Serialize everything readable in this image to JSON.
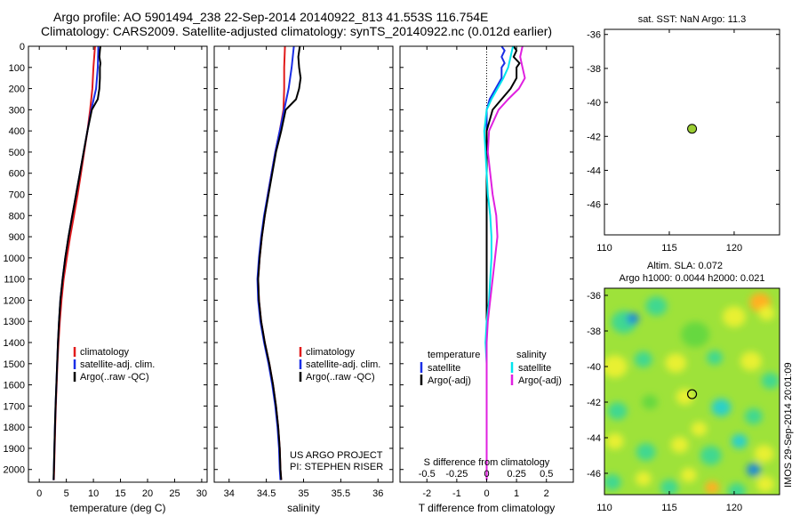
{
  "header": {
    "line1": "Argo profile: AO 5901494_238 22-Sep-2014 20140922_813 41.553S 116.754E",
    "line2": "Climatology: CARS2009. Satellite-adjusted climatology: synTS_20140922.nc (0.012d earlier)"
  },
  "colors": {
    "climatology": "#e11b1b",
    "satellite": "#1a2ee6",
    "argo": "#000000",
    "cyan": "#00e5ee",
    "magenta": "#e020e0",
    "marker": "#9acd32"
  },
  "chart_data": [
    {
      "type": "line",
      "name": "temperature",
      "xlabel": "temperature (deg C)",
      "ylabel": "",
      "xlim": [
        -2,
        31
      ],
      "ylim": [
        2060,
        0
      ],
      "xticks": [
        0,
        5,
        10,
        15,
        20,
        25,
        30
      ],
      "yticks": [
        0,
        100,
        200,
        300,
        400,
        500,
        600,
        700,
        800,
        900,
        1000,
        1100,
        1200,
        1300,
        1400,
        1500,
        1600,
        1700,
        1800,
        1900,
        2000
      ],
      "legend": [
        "climatology",
        "satellite-adj. clim.",
        "Argo(..raw -QC)"
      ],
      "series": [
        {
          "name": "climatology",
          "depth": [
            0,
            100,
            200,
            300,
            400,
            500,
            600,
            700,
            800,
            900,
            1000,
            1100,
            1200,
            1300,
            1400,
            1500,
            1600,
            1700,
            1800,
            1900,
            2000,
            2050
          ],
          "values": [
            10.3,
            10.0,
            9.8,
            9.4,
            8.9,
            8.3,
            7.7,
            7.1,
            6.4,
            5.7,
            5.1,
            4.5,
            4.1,
            3.8,
            3.55,
            3.35,
            3.2,
            3.05,
            2.95,
            2.85,
            2.75,
            2.7
          ]
        },
        {
          "name": "satellite-adj. clim.",
          "depth": [
            0,
            100,
            200,
            300,
            400,
            500,
            600,
            700,
            800,
            900,
            1000,
            1100,
            1200,
            1300,
            1400,
            1500,
            1600,
            1700,
            1800,
            1900,
            2000,
            2050
          ],
          "values": [
            10.9,
            10.8,
            10.5,
            9.6,
            8.9,
            8.2,
            7.5,
            6.8,
            6.1,
            5.4,
            4.8,
            4.3,
            3.9,
            3.65,
            3.45,
            3.3,
            3.15,
            3.0,
            2.9,
            2.8,
            2.7,
            2.65
          ]
        },
        {
          "name": "Argo(..raw -QC)",
          "depth": [
            0,
            20,
            50,
            80,
            100,
            150,
            200,
            250,
            300,
            400,
            500,
            600,
            700,
            800,
            900,
            1000,
            1100,
            1200,
            1300,
            1400,
            1500,
            1600,
            1700,
            1800,
            1900,
            2000,
            2050
          ],
          "values": [
            11.3,
            11.2,
            11.1,
            11.3,
            11.2,
            11.2,
            11.1,
            10.8,
            9.7,
            8.9,
            8.2,
            7.5,
            6.8,
            6.1,
            5.4,
            4.8,
            4.3,
            3.9,
            3.65,
            3.45,
            3.3,
            3.15,
            3.0,
            2.9,
            2.8,
            2.7,
            2.65
          ]
        }
      ]
    },
    {
      "type": "line",
      "name": "salinity",
      "xlabel": "salinity",
      "ylabel": "",
      "xlim": [
        33.8,
        36.2
      ],
      "ylim": [
        2060,
        0
      ],
      "xticks": [
        34,
        34.5,
        35,
        35.5,
        36
      ],
      "xtick_labels": [
        "34",
        "34.5",
        "35",
        "35.5",
        "36"
      ],
      "legend": [
        "climatology",
        "satellite-adj. clim.",
        "Argo(..raw -QC)"
      ],
      "annotation": [
        "US ARGO PROJECT",
        "PI: STEPHEN RISER"
      ],
      "series": [
        {
          "name": "climatology",
          "depth": [
            0,
            100,
            200,
            300,
            400,
            500,
            600,
            700,
            800,
            900,
            1000,
            1100,
            1200,
            1300,
            1400,
            1500,
            1600,
            1700,
            1800,
            1900,
            2000,
            2050
          ],
          "values": [
            34.75,
            34.74,
            34.74,
            34.73,
            34.68,
            34.62,
            34.57,
            34.52,
            34.48,
            34.44,
            34.41,
            34.39,
            34.4,
            34.43,
            34.48,
            34.54,
            34.59,
            34.63,
            34.66,
            34.68,
            34.69,
            34.7
          ]
        },
        {
          "name": "satellite-adj. clim.",
          "depth": [
            0,
            100,
            150,
            200,
            250,
            300,
            400,
            500,
            600,
            700,
            800,
            900,
            1000,
            1100,
            1200,
            1300,
            1400,
            1500,
            1600,
            1700,
            1800,
            1900,
            2000,
            2050
          ],
          "values": [
            34.87,
            34.84,
            34.82,
            34.8,
            34.77,
            34.74,
            34.68,
            34.62,
            34.57,
            34.52,
            34.47,
            34.43,
            34.4,
            34.38,
            34.39,
            34.42,
            34.47,
            34.53,
            34.58,
            34.62,
            34.65,
            34.67,
            34.68,
            34.69
          ]
        },
        {
          "name": "Argo(..raw -QC)",
          "depth": [
            0,
            50,
            100,
            150,
            200,
            250,
            300,
            400,
            500,
            600,
            700,
            800,
            900,
            1000,
            1100,
            1200,
            1300,
            1400,
            1500,
            1600,
            1700,
            1800,
            1900,
            2000,
            2050
          ],
          "values": [
            34.95,
            34.93,
            34.94,
            34.96,
            34.94,
            34.9,
            34.76,
            34.7,
            34.63,
            34.58,
            34.53,
            34.48,
            34.44,
            34.41,
            34.39,
            34.4,
            34.43,
            34.48,
            34.54,
            34.59,
            34.63,
            34.66,
            34.68,
            34.69,
            34.7
          ]
        }
      ]
    },
    {
      "type": "line",
      "name": "differences",
      "xlabel": "T difference from climatology",
      "xlabel_top": "S difference from climatology",
      "xlim": [
        -2.9,
        2.9
      ],
      "ylim": [
        2060,
        0
      ],
      "xticks": [
        -2,
        -1,
        0,
        1,
        2
      ],
      "xticks_S": [
        -0.5,
        -0.25,
        0,
        0.25,
        0.5
      ],
      "xticks_S_labels": [
        "-0.5",
        "-0.25",
        "0",
        "0.25",
        "0.5"
      ],
      "legend_headers": [
        "temperature",
        "salinity"
      ],
      "legend": [
        "satellite",
        "Argo(-adj)",
        "satellite",
        "Argo(-adj)"
      ],
      "series": [
        {
          "name": "T satellite",
          "depth": [
            0,
            20,
            50,
            80,
            100,
            150,
            200,
            250,
            300,
            400,
            500,
            700,
            1000,
            1500,
            2050
          ],
          "values": [
            0.5,
            0.6,
            0.5,
            0.6,
            0.5,
            0.5,
            0.3,
            0.1,
            0.0,
            0.0,
            0.0,
            0.0,
            0.0,
            0.0,
            0.0
          ]
        },
        {
          "name": "T Argo(-adj)",
          "depth": [
            0,
            20,
            50,
            80,
            100,
            150,
            200,
            250,
            300,
            400,
            500,
            700,
            1000,
            1500,
            2050
          ],
          "values": [
            0.9,
            1.0,
            0.9,
            1.1,
            1.0,
            1.0,
            0.8,
            0.5,
            0.2,
            0.0,
            0.0,
            0.0,
            0.0,
            0.0,
            0.0
          ]
        },
        {
          "name": "S satellite",
          "depth": [
            0,
            50,
            100,
            150,
            200,
            250,
            300,
            400,
            500,
            600,
            700,
            800,
            900,
            1000,
            1100,
            1200,
            1300,
            1400,
            1500,
            2050
          ],
          "values": [
            0.22,
            0.2,
            0.18,
            0.14,
            0.09,
            0.04,
            0.0,
            -0.02,
            -0.01,
            0.0,
            0.01,
            0.03,
            0.04,
            0.04,
            0.03,
            0.02,
            0.0,
            -0.01,
            0.0,
            0.0
          ]
        },
        {
          "name": "S Argo(-adj)",
          "depth": [
            0,
            50,
            100,
            150,
            200,
            250,
            300,
            400,
            500,
            600,
            700,
            800,
            900,
            1000,
            1100,
            1200,
            1300,
            1400,
            1500,
            2050
          ],
          "values": [
            0.3,
            0.28,
            0.3,
            0.32,
            0.27,
            0.18,
            0.1,
            0.02,
            0.01,
            0.03,
            0.05,
            0.08,
            0.09,
            0.07,
            0.05,
            0.03,
            0.01,
            0.0,
            0.0,
            0.0
          ]
        }
      ]
    },
    {
      "type": "scatter",
      "name": "sst-map",
      "title": "sat. SST: NaN Argo: 11.3",
      "xlim": [
        110,
        123.5
      ],
      "ylim": [
        -47.8,
        -35.7
      ],
      "xticks": [
        110,
        115,
        120
      ],
      "yticks": [
        -36,
        -38,
        -40,
        -42,
        -44,
        -46
      ],
      "points": [
        {
          "x": 116.754,
          "y": -41.553
        }
      ]
    },
    {
      "type": "heatmap",
      "name": "sla-map",
      "title": "Altim. SLA: 0.072",
      "subtitle": "Argo h1000: 0.0044 h2000: 0.021",
      "side_label": "IMOS 29-Sep-2014 20:01:09",
      "xlim": [
        110,
        123.5
      ],
      "ylim": [
        -47.2,
        -35.6
      ],
      "xticks": [
        110,
        115,
        120
      ],
      "yticks": [
        -36,
        -38,
        -40,
        -42,
        -44,
        -46
      ],
      "points": [
        {
          "x": 116.754,
          "y": -41.553
        }
      ]
    }
  ]
}
